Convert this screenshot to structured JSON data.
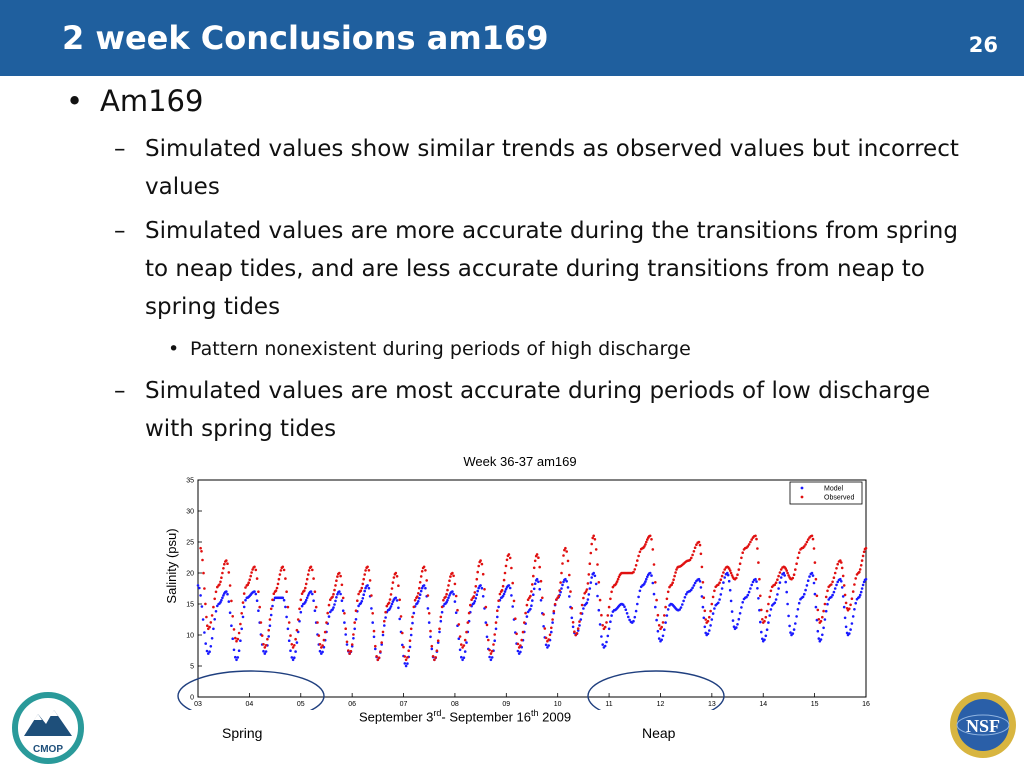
{
  "slide": {
    "title": "2 week Conclusions am169",
    "number": "26"
  },
  "bullets": {
    "level1": "Am169",
    "sub1": "Simulated values show similar trends as observed values but incorrect values",
    "sub2": "Simulated values are more accurate during the transitions from spring to neap tides, and are less accurate during  transitions from neap to spring tides",
    "sub2_detail": "Pattern nonexistent during periods of high discharge",
    "sub3": "Simulated values are most accurate during periods of low discharge with spring tides",
    "bullet_mark": "•",
    "dash_mark": "–"
  },
  "chart_data": {
    "type": "scatter",
    "title": "Week 36-37 am169",
    "ylabel": "Salinity (psu)",
    "xlim": [
      3,
      16
    ],
    "ylim": [
      0,
      35
    ],
    "yticks": [
      "0",
      "5",
      "10",
      "15",
      "20",
      "25",
      "30",
      "35"
    ],
    "xticks": [
      "03",
      "04",
      "05",
      "06",
      "07",
      "08",
      "09",
      "10",
      "11",
      "12",
      "13",
      "14",
      "15",
      "16"
    ],
    "grid": false,
    "legend_placement": "top-right",
    "series": [
      {
        "name": "Model",
        "color": "#1a1aff",
        "x": [
          3.0,
          3.2,
          3.4,
          3.55,
          3.75,
          3.95,
          4.1,
          4.3,
          4.5,
          4.65,
          4.85,
          5.05,
          5.2,
          5.4,
          5.6,
          5.75,
          5.95,
          6.15,
          6.3,
          6.5,
          6.7,
          6.85,
          7.05,
          7.25,
          7.4,
          7.6,
          7.8,
          7.95,
          8.15,
          8.35,
          8.5,
          8.7,
          8.9,
          9.05,
          9.25,
          9.45,
          9.6,
          9.8,
          10.0,
          10.15,
          10.35,
          10.55,
          10.7,
          10.9,
          11.1,
          11.25,
          11.45,
          11.65,
          11.8,
          12.0,
          12.2,
          12.35,
          12.55,
          12.75,
          12.9,
          13.1,
          13.3,
          13.45,
          13.65,
          13.85,
          14.0,
          14.2,
          14.4,
          14.55,
          14.75,
          14.95,
          15.1,
          15.3,
          15.5,
          15.65,
          15.85,
          16.0
        ],
        "y": [
          18,
          7,
          15,
          17,
          6,
          16,
          17,
          7,
          16,
          16,
          6,
          15,
          17,
          7,
          14,
          17,
          7,
          15,
          18,
          6,
          14,
          16,
          5,
          15,
          18,
          6,
          15,
          17,
          6,
          15,
          18,
          6,
          16,
          18,
          7,
          14,
          19,
          8,
          16,
          19,
          10,
          15,
          20,
          8,
          14,
          15,
          12,
          18,
          20,
          9,
          15,
          14,
          17,
          19,
          10,
          15,
          20,
          11,
          16,
          19,
          9,
          15,
          20,
          10,
          16,
          20,
          9,
          16,
          19,
          10,
          16,
          19
        ]
      },
      {
        "name": "Observed",
        "color": "#e01010",
        "x": [
          3.05,
          3.2,
          3.4,
          3.55,
          3.75,
          3.95,
          4.1,
          4.3,
          4.5,
          4.65,
          4.85,
          5.05,
          5.2,
          5.4,
          5.6,
          5.75,
          5.95,
          6.15,
          6.3,
          6.5,
          6.7,
          6.85,
          7.05,
          7.25,
          7.4,
          7.6,
          7.8,
          7.95,
          8.15,
          8.35,
          8.5,
          8.7,
          8.9,
          9.05,
          9.25,
          9.45,
          9.6,
          9.8,
          10.0,
          10.15,
          10.35,
          10.55,
          10.7,
          10.9,
          11.1,
          11.25,
          11.45,
          11.65,
          11.8,
          12.0,
          12.2,
          12.35,
          12.55,
          12.75,
          12.9,
          13.1,
          13.3,
          13.45,
          13.65,
          13.85,
          14.0,
          14.2,
          14.4,
          14.55,
          14.75,
          14.95,
          15.1,
          15.3,
          15.5,
          15.65,
          15.85,
          16.0
        ],
        "y": [
          24,
          11,
          18,
          22,
          9,
          18,
          21,
          8,
          17,
          21,
          8,
          17,
          21,
          8,
          16,
          20,
          7,
          17,
          21,
          6,
          15,
          20,
          6,
          16,
          21,
          6,
          16,
          20,
          8,
          16,
          22,
          7,
          17,
          23,
          8,
          16,
          23,
          9,
          16,
          24,
          10,
          17,
          26,
          11,
          18,
          20,
          20,
          24,
          26,
          11,
          18,
          21,
          22,
          25,
          12,
          18,
          21,
          19,
          24,
          26,
          12,
          18,
          21,
          19,
          24,
          26,
          12,
          18,
          22,
          14,
          20,
          24
        ]
      }
    ],
    "annotations": [
      {
        "text": "Spring",
        "x_start": 3.0,
        "x_end": 5.5
      },
      {
        "text": "Neap",
        "x_start": 10.5,
        "x_end": 13.3
      }
    ]
  },
  "caption": {
    "prefix": "September 3",
    "sup1": "rd",
    "middle": "- September 16",
    "sup2": "th",
    "suffix": " 2009",
    "spring": "Spring",
    "neap": "Neap"
  },
  "logos": {
    "left_text": "CMOP",
    "right_text": "NSF"
  }
}
